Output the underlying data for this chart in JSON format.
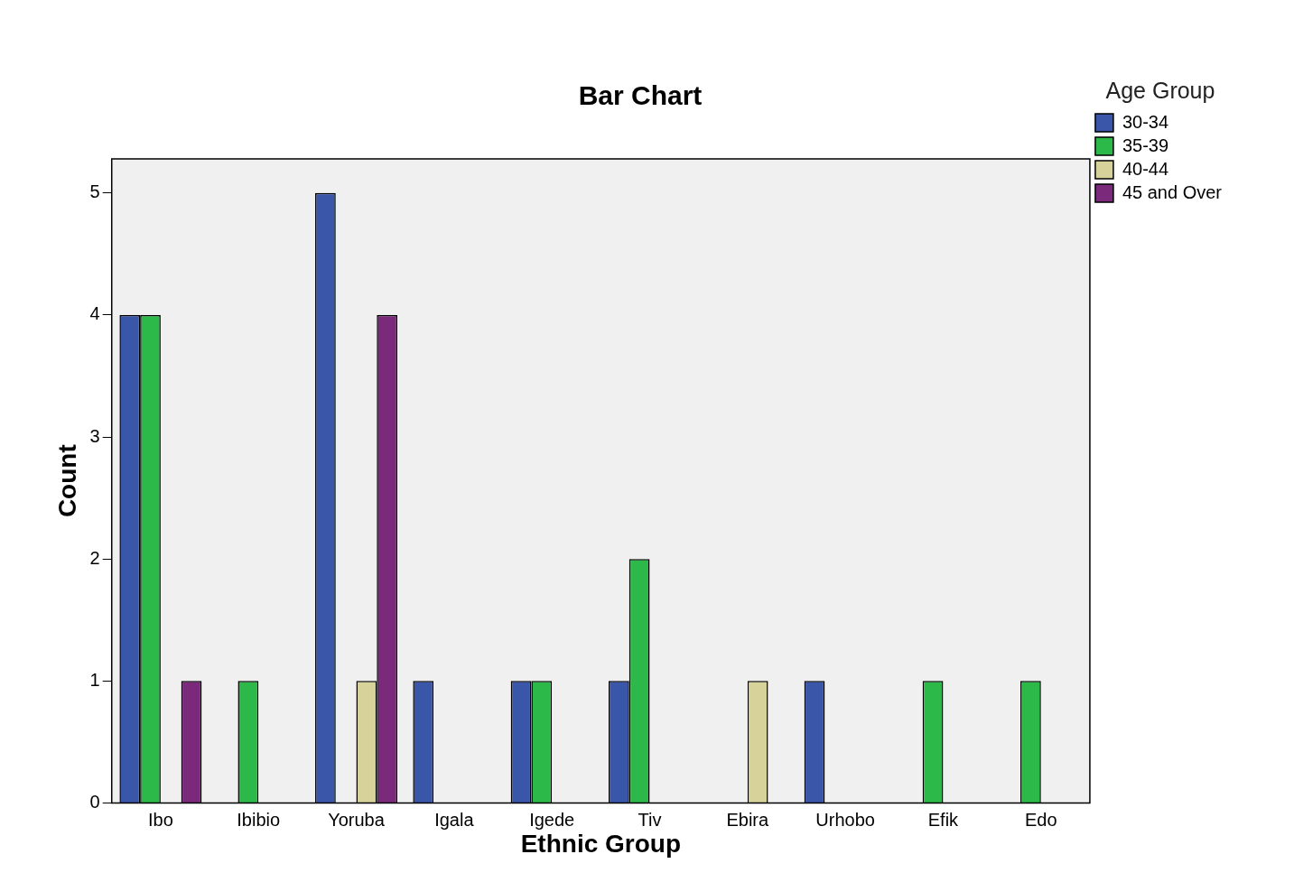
{
  "chart_data": {
    "type": "bar",
    "title": "Bar Chart",
    "xlabel": "Ethnic Group",
    "ylabel": "Count",
    "legend_title": "Age Group",
    "legend": "top right",
    "grid": false,
    "categories": [
      "Ibo",
      "Ibibio",
      "Yoruba",
      "Igala",
      "Igede",
      "Tiv",
      "Ebira",
      "Urhobo",
      "Efik",
      "Edo"
    ],
    "ylim": [
      0,
      5.28
    ],
    "yticks": [
      0,
      1,
      2,
      3,
      4,
      5
    ],
    "series": [
      {
        "name": "30-34",
        "color": "#3a56a8",
        "values": [
          4,
          null,
          5,
          1,
          1,
          1,
          null,
          1,
          null,
          null
        ]
      },
      {
        "name": "35-39",
        "color": "#2db84a",
        "values": [
          4,
          1,
          null,
          null,
          1,
          2,
          null,
          null,
          1,
          1
        ]
      },
      {
        "name": "40-44",
        "color": "#d6d29a",
        "values": [
          null,
          null,
          1,
          null,
          null,
          null,
          1,
          null,
          null,
          null
        ]
      },
      {
        "name": "45 and Over",
        "color": "#7b2a7b",
        "values": [
          1,
          null,
          4,
          null,
          null,
          null,
          null,
          null,
          null,
          null
        ]
      }
    ]
  }
}
